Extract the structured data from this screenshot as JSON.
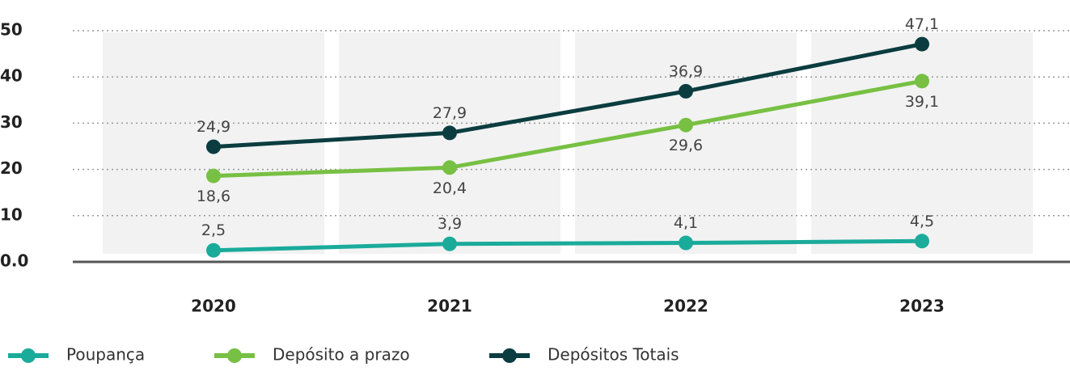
{
  "chart_data": {
    "type": "line",
    "categories": [
      "2020",
      "2021",
      "2022",
      "2023"
    ],
    "series": [
      {
        "name": "Poupança",
        "color": "#1aab9b",
        "values": [
          2.5,
          3.9,
          4.1,
          4.5
        ],
        "value_labels": [
          "2,5",
          "3,9",
          "4,1",
          "4,5"
        ],
        "label_position": "above"
      },
      {
        "name": "Depósito a prazo",
        "color": "#77c043",
        "values": [
          18.6,
          20.4,
          29.6,
          39.1
        ],
        "value_labels": [
          "18,6",
          "20,4",
          "29,6",
          "39,1"
        ],
        "label_position": "below"
      },
      {
        "name": "Depósitos Totais",
        "color": "#0b3d40",
        "values": [
          24.9,
          27.9,
          36.9,
          47.1
        ],
        "value_labels": [
          "24,9",
          "27,9",
          "36,9",
          "47,1"
        ],
        "label_position": "above"
      }
    ],
    "ylim": [
      0,
      50
    ],
    "yticks": [
      {
        "value": 0,
        "label": "0.0"
      },
      10,
      20,
      30,
      40,
      50
    ],
    "grid": true
  }
}
